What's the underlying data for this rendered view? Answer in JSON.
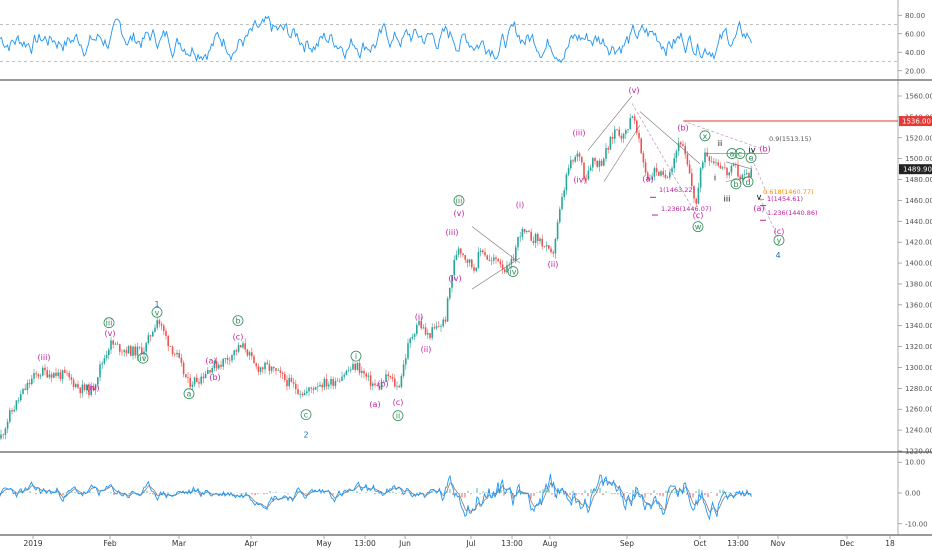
{
  "chart_data": [
    {
      "type": "line",
      "name_role": "oscillator-top",
      "ylim": [
        10,
        90
      ],
      "yticks": [
        "80.00",
        "60.00",
        "40.00",
        "20.00"
      ],
      "yticks_values": [
        80,
        60,
        40,
        20
      ],
      "dashed_levels": [
        70,
        30
      ],
      "color": "#2196f3"
    },
    {
      "type": "line",
      "name_role": "price",
      "ylim": [
        1220,
        1570
      ],
      "yticks": [
        "1560.00",
        "1540.00",
        "1520.00",
        "1500.00",
        "1480.00",
        "1460.00",
        "1440.00",
        "1420.00",
        "1400.00",
        "1380.00",
        "1360.00",
        "1340.00",
        "1320.00",
        "1300.00",
        "1280.00",
        "1260.00",
        "1240.00",
        "1220.00"
      ],
      "yticks_values": [
        1560,
        1540,
        1520,
        1500,
        1480,
        1460,
        1440,
        1420,
        1400,
        1380,
        1360,
        1340,
        1320,
        1300,
        1280,
        1260,
        1240,
        1220
      ],
      "resistance_label": "1536.00",
      "resistance_value": 1536,
      "last_price_label": "1489.90",
      "last_price_value": 1489.9,
      "anchors": [
        [
          0,
          1232
        ],
        [
          10,
          1255
        ],
        [
          22,
          1275
        ],
        [
          33,
          1290
        ],
        [
          42,
          1296
        ],
        [
          55,
          1294
        ],
        [
          66,
          1292
        ],
        [
          80,
          1280
        ],
        [
          92,
          1278
        ],
        [
          100,
          1300
        ],
        [
          110,
          1323
        ],
        [
          122,
          1318
        ],
        [
          134,
          1315
        ],
        [
          145,
          1318
        ],
        [
          157,
          1347
        ],
        [
          168,
          1325
        ],
        [
          177,
          1310
        ],
        [
          188,
          1285
        ],
        [
          200,
          1290
        ],
        [
          210,
          1300
        ],
        [
          222,
          1305
        ],
        [
          238,
          1318
        ],
        [
          245,
          1320
        ],
        [
          255,
          1300
        ],
        [
          268,
          1300
        ],
        [
          280,
          1292
        ],
        [
          292,
          1283
        ],
        [
          305,
          1275
        ],
        [
          318,
          1285
        ],
        [
          330,
          1285
        ],
        [
          345,
          1295
        ],
        [
          357,
          1302
        ],
        [
          368,
          1288
        ],
        [
          378,
          1280
        ],
        [
          388,
          1292
        ],
        [
          398,
          1280
        ],
        [
          408,
          1320
        ],
        [
          418,
          1345
        ],
        [
          427,
          1330
        ],
        [
          437,
          1338
        ],
        [
          445,
          1345
        ],
        [
          452,
          1390
        ],
        [
          458,
          1417
        ],
        [
          466,
          1405
        ],
        [
          474,
          1395
        ],
        [
          482,
          1415
        ],
        [
          490,
          1400
        ],
        [
          498,
          1405
        ],
        [
          506,
          1392
        ],
        [
          512,
          1400
        ],
        [
          520,
          1430
        ],
        [
          530,
          1425
        ],
        [
          540,
          1422
        ],
        [
          552,
          1405
        ],
        [
          560,
          1450
        ],
        [
          568,
          1490
        ],
        [
          575,
          1500
        ],
        [
          580,
          1505
        ],
        [
          585,
          1480
        ],
        [
          592,
          1500
        ],
        [
          600,
          1495
        ],
        [
          608,
          1510
        ],
        [
          616,
          1530
        ],
        [
          624,
          1520
        ],
        [
          632,
          1545
        ],
        [
          640,
          1510
        ],
        [
          648,
          1480
        ],
        [
          656,
          1490
        ],
        [
          664,
          1480
        ],
        [
          672,
          1495
        ],
        [
          680,
          1520
        ],
        [
          688,
          1490
        ],
        [
          696,
          1456
        ],
        [
          704,
          1508
        ],
        [
          712,
          1500
        ],
        [
          720,
          1495
        ],
        [
          728,
          1485
        ],
        [
          735,
          1492
        ],
        [
          740,
          1482
        ],
        [
          748,
          1485
        ],
        [
          752,
          1490
        ]
      ]
    },
    {
      "type": "line",
      "name_role": "oscillator-bottom",
      "ylim": [
        -13,
        13
      ],
      "yticks": [
        "10.00",
        "0.00",
        "-10.00"
      ],
      "yticks_values": [
        10,
        0,
        -10
      ],
      "colors": [
        "#2196f3",
        "#808080",
        "#e53935"
      ]
    }
  ],
  "x_axis": {
    "labels": [
      "2019",
      "Feb",
      "Mar",
      "Apr",
      "May",
      "13:00",
      "Jun",
      "Jul",
      "13:00",
      "Aug",
      "Sep",
      "Oct",
      "13:00",
      "Nov",
      "Dec",
      "18"
    ]
  },
  "annotations": {
    "fib_1": "1(1463.22)",
    "fib_1236_a": "1.236(1446.07)",
    "fib_0618": "0.618(1460.77)",
    "fib_1_b": "1(1454.61)",
    "fib_1236_b": "1.236(1440.86)",
    "fib_09": "0.9(1513.15)"
  },
  "wave_labels": [
    {
      "text": "(iii)",
      "color": "#c020a0",
      "price": 1307,
      "x": 44
    },
    {
      "text": "(iv)",
      "color": "#c020a0",
      "price": 1278,
      "x": 93
    },
    {
      "text": "iii",
      "color": "#2e8b57",
      "price": 1340,
      "x": 109,
      "circled": true
    },
    {
      "text": "(v)",
      "color": "#c020a0",
      "price": 1330,
      "x": 110
    },
    {
      "text": "iv",
      "color": "#2e8b57",
      "price": 1306,
      "x": 143,
      "circled": true
    },
    {
      "text": "1",
      "color": "#1e73b4",
      "price": 1358,
      "x": 157,
      "plain": true
    },
    {
      "text": "v",
      "color": "#2e8b57",
      "price": 1350,
      "x": 157,
      "circled": true
    },
    {
      "text": "a",
      "color": "#2e8b57",
      "price": 1272,
      "x": 189,
      "circled": true
    },
    {
      "text": "(a)",
      "color": "#c020a0",
      "price": 1304,
      "x": 211
    },
    {
      "text": "(b)",
      "color": "#c020a0",
      "price": 1288,
      "x": 215
    },
    {
      "text": "b",
      "color": "#2e8b57",
      "price": 1342,
      "x": 238,
      "circled": true
    },
    {
      "text": "(c)",
      "color": "#c020a0",
      "price": 1327,
      "x": 238
    },
    {
      "text": "c",
      "color": "#2e8b57",
      "price": 1252,
      "x": 306,
      "circled": true
    },
    {
      "text": "2",
      "color": "#1e73b4",
      "price": 1233,
      "x": 306,
      "plain": true
    },
    {
      "text": "i",
      "color": "#2e8b57",
      "price": 1308,
      "x": 356,
      "circled": true
    },
    {
      "text": "(a)",
      "color": "#c020a0",
      "price": 1262,
      "x": 375
    },
    {
      "text": "(b)",
      "color": "#c020a0",
      "price": 1282,
      "x": 383
    },
    {
      "text": "(c)",
      "color": "#c020a0",
      "price": 1264,
      "x": 398
    },
    {
      "text": "ii",
      "color": "#2e8b57",
      "price": 1251,
      "x": 398,
      "circled": true
    },
    {
      "text": "(i)",
      "color": "#c020a0",
      "price": 1346,
      "x": 419
    },
    {
      "text": "(ii)",
      "color": "#c020a0",
      "price": 1315,
      "x": 426
    },
    {
      "text": "(iii)",
      "color": "#c020a0",
      "price": 1427,
      "x": 452
    },
    {
      "text": "(iv)",
      "color": "#c020a0",
      "price": 1383,
      "x": 455
    },
    {
      "text": "iii",
      "color": "#2e8b57",
      "price": 1457,
      "x": 459,
      "circled": true
    },
    {
      "text": "(v)",
      "color": "#c020a0",
      "price": 1445,
      "x": 459
    },
    {
      "text": "iv",
      "color": "#2e8b57",
      "price": 1389,
      "x": 513,
      "circled": true
    },
    {
      "text": "(i)",
      "color": "#c020a0",
      "price": 1453,
      "x": 520
    },
    {
      "text": "(ii)",
      "color": "#c020a0",
      "price": 1396,
      "x": 553
    },
    {
      "text": "(iii)",
      "color": "#c020a0",
      "price": 1522,
      "x": 579
    },
    {
      "text": "(iv)",
      "color": "#c020a0",
      "price": 1477,
      "x": 580
    },
    {
      "text": "(v)",
      "color": "#c020a0",
      "price": 1563,
      "x": 634
    },
    {
      "text": "(a)",
      "color": "#c020a0",
      "price": 1478,
      "x": 648
    },
    {
      "text": "(b)",
      "color": "#c020a0",
      "price": 1527,
      "x": 683
    },
    {
      "text": "x",
      "color": "#2e8b57",
      "price": 1519,
      "x": 705,
      "circled": true
    },
    {
      "text": "ii",
      "color": "#000000",
      "price": 1512,
      "x": 720,
      "plain": true
    },
    {
      "text": "(c)",
      "color": "#c020a0",
      "price": 1443,
      "x": 698
    },
    {
      "text": "w",
      "color": "#2e8b57",
      "price": 1432,
      "x": 698,
      "circled": true
    },
    {
      "text": "iii",
      "color": "#000000",
      "price": 1459,
      "x": 727,
      "plain": true
    },
    {
      "text": "i",
      "color": "#000000",
      "price": 1479,
      "x": 715,
      "plain": true
    },
    {
      "text": "a",
      "color": "#2e8b57",
      "price": 1502,
      "x": 732,
      "circled": true
    },
    {
      "text": "c",
      "color": "#2e8b57",
      "price": 1502,
      "x": 740,
      "circled": true
    },
    {
      "text": "e",
      "color": "#2e8b57",
      "price": 1498,
      "x": 751,
      "circled": true
    },
    {
      "text": "b",
      "color": "#2e8b57",
      "price": 1473,
      "x": 736,
      "circled": true
    },
    {
      "text": "d",
      "color": "#2e8b57",
      "price": 1475,
      "x": 748,
      "circled": true
    },
    {
      "text": "iv",
      "color": "#000000",
      "price": 1506,
      "x": 752,
      "plain": true
    },
    {
      "text": "(b)",
      "color": "#c020a0",
      "price": 1507,
      "x": 765
    },
    {
      "text": "v",
      "color": "#000000",
      "price": 1461,
      "x": 759,
      "plain": true
    },
    {
      "text": "(a)",
      "color": "#c020a0",
      "price": 1450,
      "x": 759
    },
    {
      "text": "(c)",
      "color": "#c020a0",
      "price": 1428,
      "x": 779
    },
    {
      "text": "y",
      "color": "#2e8b57",
      "price": 1419,
      "x": 779,
      "circled": true
    },
    {
      "text": "4",
      "color": "#1e73b4",
      "price": 1405,
      "x": 778,
      "plain": true
    }
  ]
}
